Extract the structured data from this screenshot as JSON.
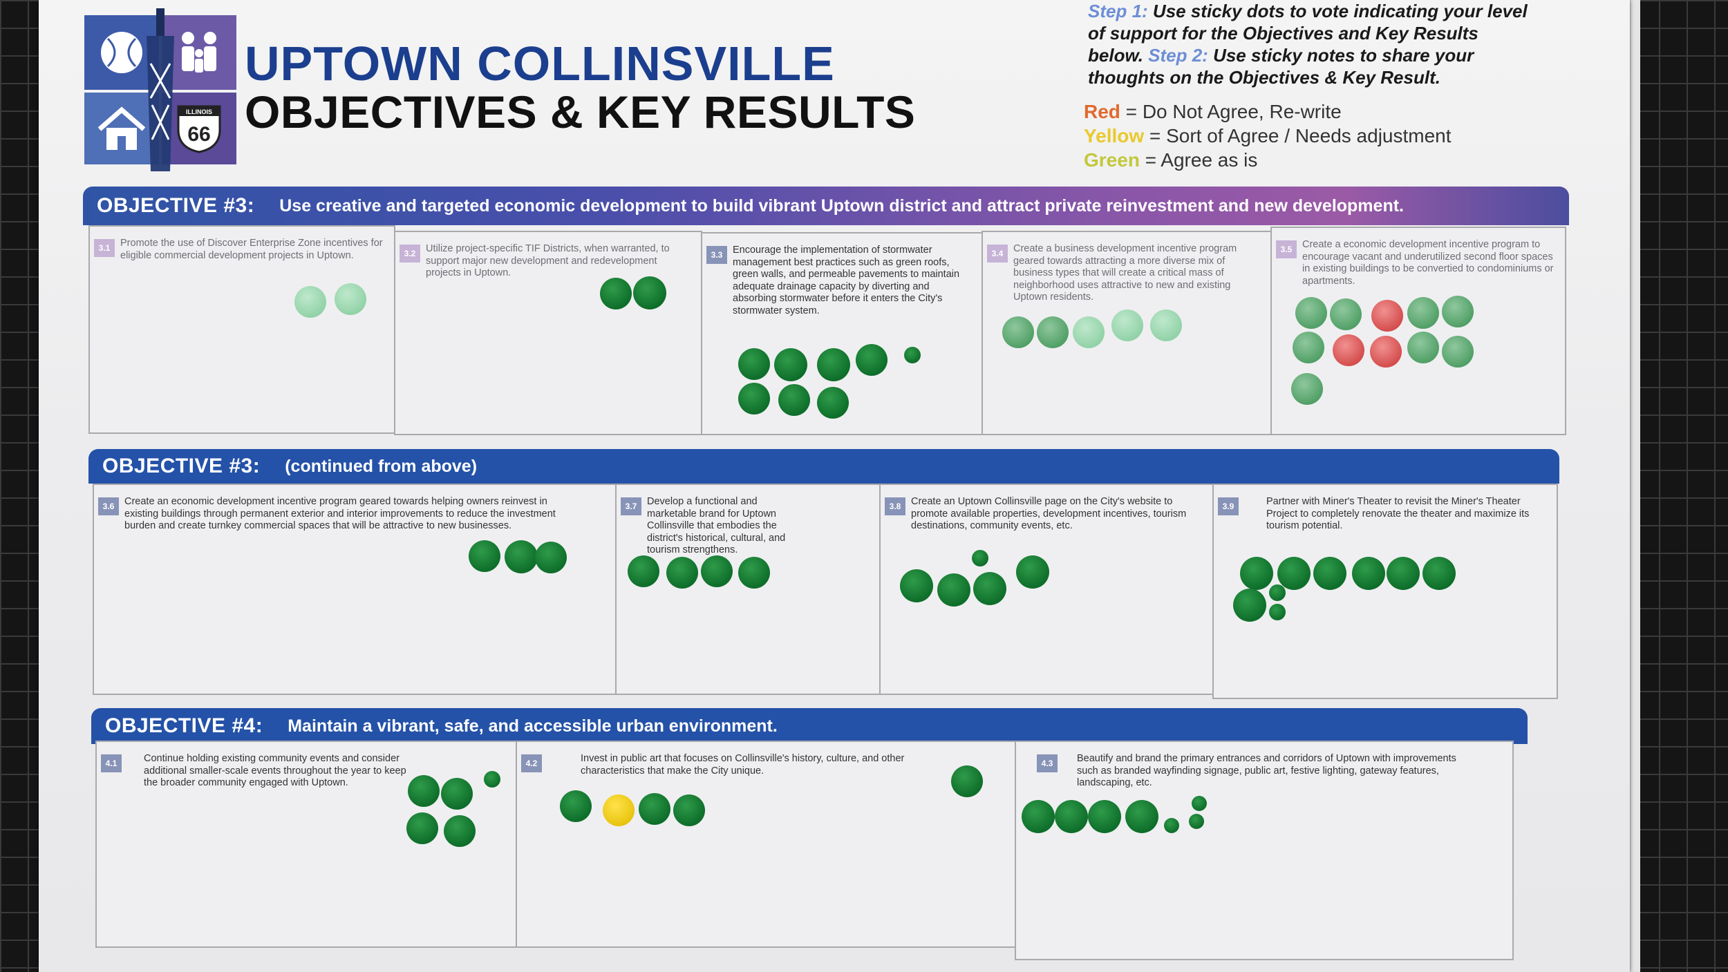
{
  "header": {
    "title_line1": "UPTOWN COLLINSVILLE",
    "title_line2": "OBJECTIVES & KEY RESULTS",
    "logo_shield_top": "ILLINOIS",
    "logo_shield_number": "66"
  },
  "instructions": {
    "step1_label": "Step 1:",
    "step1_text": " Use sticky dots to vote indicating your level of support for the Objectives and Key Results below. ",
    "step2_label": "Step 2:",
    "step2_text": " Use sticky notes to share your thoughts on the Objectives & Key Result."
  },
  "legend": {
    "red_label": "Red",
    "red_text": " = Do Not Agree, Re-write",
    "yellow_label": "Yellow",
    "yellow_text": " = Sort of Agree / Needs adjustment",
    "green_label": "Green",
    "green_text": " = Agree as is"
  },
  "objectives": {
    "obj3a": {
      "num": "OBJECTIVE #3:",
      "text": "Use creative and targeted economic development to build vibrant Uptown district and attract private reinvestment and new development."
    },
    "obj3b": {
      "num": "OBJECTIVE #3:",
      "text": "(continued from above)"
    },
    "obj4": {
      "num": "OBJECTIVE #4:",
      "text": "Maintain a vibrant, safe, and accessible urban environment."
    }
  },
  "key_results": {
    "kr31": {
      "badge": "3.1",
      "text": "Promote the use of Discover Enterprise Zone incentives for eligible commercial development projects in Uptown."
    },
    "kr32": {
      "badge": "3.2",
      "text": "Utilize project-specific TIF Districts, when warranted, to support major new development and redevelopment projects in Uptown."
    },
    "kr33": {
      "badge": "3.3",
      "text": "Encourage the implementation of stormwater management best practices such as green roofs, green walls, and permeable pavements to maintain adequate drainage capacity by diverting and absorbing stormwater before it enters the City's stormwater system."
    },
    "kr34": {
      "badge": "3.4",
      "text": "Create a business development incentive program geared towards attracting a more diverse mix of business types that will create a critical mass of neighborhood uses attractive to new and existing Uptown residents."
    },
    "kr35": {
      "badge": "3.5",
      "text": "Create a economic development incentive program to encourage vacant and underutilized second floor spaces in existing buildings to be convertied to condominiums or apartments."
    },
    "kr36": {
      "badge": "3.6",
      "text": "Create an economic development incentive program geared towards helping owners reinvest in existing buildings through permanent exterior and interior improvements to reduce the investment burden and create turnkey commercial spaces that will be attractive to new businesses."
    },
    "kr37": {
      "badge": "3.7",
      "text": "Develop a functional and marketable brand for Uptown Collinsville that embodies the district's historical, cultural, and tourism strengthens."
    },
    "kr38": {
      "badge": "3.8",
      "text": "Create an Uptown Collinsville page on the City's website to promote available properties, development incentives, tourism destinations, community events, etc."
    },
    "kr39": {
      "badge": "3.9",
      "text": "Partner with Miner's Theater to revisit the Miner's Theater Project to completely renovate the theater and maximize its tourism potential."
    },
    "kr41": {
      "badge": "4.1",
      "text": "Continue holding existing community events and consider additional smaller-scale events throughout the year to keep the broader community engaged with Uptown."
    },
    "kr42": {
      "badge": "4.2",
      "text": "Invest in public art that focuses on Collinsville's history, culture, and other characteristics that make the City unique."
    },
    "kr43": {
      "badge": "4.3",
      "text": "Beautify and brand the primary entrances and corridors of Uptown with improvements such as branded wayfinding signage, public art, festive lighting, gateway features, landscaping, etc."
    }
  },
  "colors": {
    "title_blue": "#1b3f8e",
    "bar_blue": "#2452a8",
    "dot_green": "#0e6e2a",
    "dot_red": "#d34a4a",
    "dot_yellow": "#e7c20d"
  }
}
